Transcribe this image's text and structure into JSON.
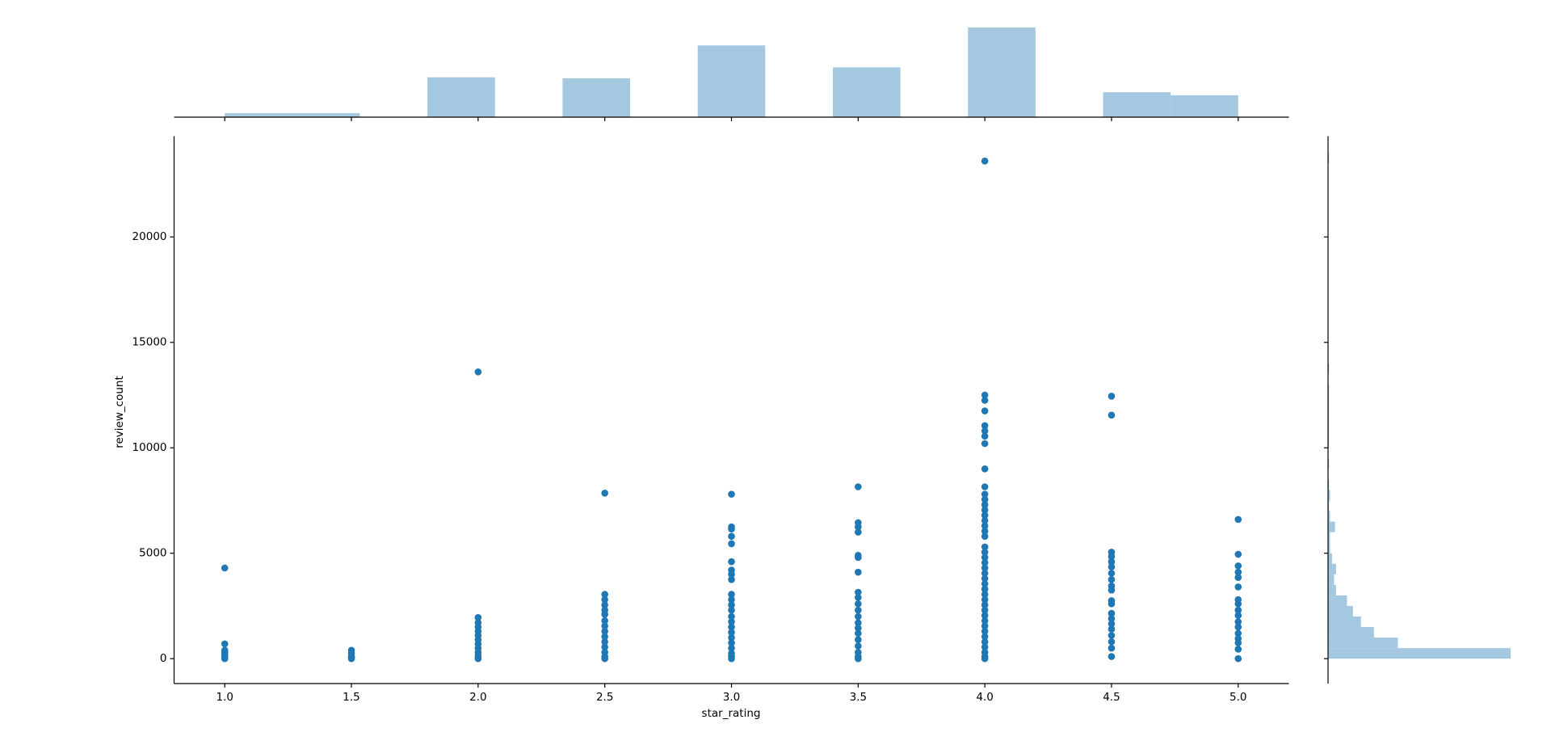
{
  "chart_data": [
    {
      "type": "scatter",
      "xlabel": "star_rating",
      "ylabel": "review_count",
      "color": "#1f77b4",
      "xlim": [
        0.8,
        5.2
      ],
      "ylim": [
        -1180,
        24780
      ],
      "xticks": [
        {
          "value": 1,
          "label": "1.0"
        },
        1.5,
        {
          "value": 2,
          "label": "2.0"
        },
        2.5,
        {
          "value": 3,
          "label": "3.0"
        },
        3.5,
        {
          "value": 4,
          "label": "4.0"
        },
        4.5,
        {
          "value": 5,
          "label": "5.0"
        }
      ],
      "yticks": [
        0,
        5000,
        10000,
        15000,
        20000
      ],
      "x": [
        1,
        1,
        1,
        1,
        1,
        1,
        1,
        1.5,
        1.5,
        1.5,
        1.5,
        1.5,
        2,
        2,
        2,
        2,
        2,
        2,
        2,
        2,
        2,
        2,
        2,
        2,
        2,
        2.5,
        2.5,
        2.5,
        2.5,
        2.5,
        2.5,
        2.5,
        2.5,
        2.5,
        2.5,
        2.5,
        2.5,
        2.5,
        2.5,
        2.5,
        3,
        3,
        3,
        3,
        3,
        3,
        3,
        3,
        3,
        3,
        3,
        3,
        3,
        3,
        3,
        3,
        3,
        3,
        3,
        3,
        3,
        3,
        3,
        3.5,
        3.5,
        3.5,
        3.5,
        3.5,
        3.5,
        3.5,
        3.5,
        3.5,
        3.5,
        3.5,
        3.5,
        3.5,
        3.5,
        3.5,
        3.5,
        3.5,
        3.5,
        3.5,
        3.5,
        4,
        4,
        4,
        4,
        4,
        4,
        4,
        4,
        4,
        4,
        4,
        4,
        4,
        4,
        4,
        4,
        4,
        4,
        4,
        4,
        4,
        4,
        4,
        4,
        4,
        4,
        4,
        4,
        4,
        4,
        4,
        4,
        4,
        4,
        4,
        4,
        4,
        4,
        4,
        4,
        4,
        4,
        4.5,
        4.5,
        4.5,
        4.5,
        4.5,
        4.5,
        4.5,
        4.5,
        4.5,
        4.5,
        4.5,
        4.5,
        4.5,
        4.5,
        4.5,
        4.5,
        4.5,
        4.5,
        4.5,
        4.5,
        5,
        5,
        5,
        5,
        5,
        5,
        5,
        5,
        5,
        5,
        5,
        5,
        5,
        5,
        5,
        5,
        5
      ],
      "y": [
        4300,
        700,
        400,
        300,
        200,
        100,
        0,
        400,
        250,
        100,
        50,
        0,
        13600,
        1950,
        1700,
        1500,
        1300,
        1100,
        900,
        700,
        500,
        300,
        150,
        50,
        0,
        7850,
        3050,
        2800,
        2550,
        2300,
        2100,
        1800,
        1550,
        1300,
        1050,
        800,
        550,
        300,
        100,
        0,
        7800,
        6250,
        6150,
        5800,
        5450,
        4600,
        4200,
        4000,
        3750,
        3050,
        2800,
        2550,
        2300,
        2000,
        1750,
        1500,
        1250,
        1000,
        750,
        500,
        250,
        100,
        0,
        8150,
        6450,
        6250,
        6000,
        4900,
        4800,
        4100,
        3150,
        2900,
        2600,
        2300,
        2000,
        1700,
        1450,
        1200,
        900,
        600,
        300,
        100,
        0,
        23600,
        12500,
        12250,
        11750,
        11050,
        10800,
        10550,
        10200,
        9000,
        8150,
        7800,
        7550,
        7300,
        7050,
        6800,
        6550,
        6300,
        6050,
        5800,
        5300,
        5050,
        4800,
        4550,
        4300,
        4050,
        3800,
        3550,
        3300,
        3050,
        2800,
        2550,
        2300,
        2050,
        1800,
        1550,
        1300,
        1050,
        800,
        550,
        300,
        100,
        0,
        12450,
        11550,
        5050,
        4850,
        4600,
        4350,
        4050,
        3750,
        3450,
        3250,
        2750,
        2600,
        2150,
        1900,
        1650,
        1400,
        1100,
        800,
        500,
        100,
        6600,
        4950,
        4400,
        4100,
        3850,
        3400,
        2800,
        2600,
        2300,
        2050,
        1750,
        1500,
        1200,
        950,
        750,
        450,
        0
      ]
    },
    {
      "type": "histogram",
      "color": "#a5c8e1",
      "ylim": [
        0,
        90
      ],
      "bins": [
        1,
        1.2667,
        1.5333,
        1.8,
        2.0667,
        2.3333,
        2.6,
        2.8667,
        3.1333,
        3.4,
        3.6667,
        3.9333,
        4.2,
        4.4667,
        4.7333,
        5
      ],
      "counts": [
        4,
        4,
        0,
        40,
        0,
        39,
        0,
        72,
        0,
        50,
        0,
        90,
        0,
        25,
        22
      ]
    },
    {
      "type": "histogram",
      "orientation": "horizontal",
      "color": "#a5c8e1",
      "xlim": [
        0,
        183
      ],
      "bins": [
        0,
        500,
        1000,
        1500,
        2000,
        2500,
        3000,
        3500,
        4000,
        4500,
        5000,
        5500,
        6000,
        6500,
        7000,
        7500,
        8000,
        8500,
        9000,
        9500,
        10000,
        10500,
        11000,
        11500,
        12000,
        12500,
        13000,
        13500,
        14000,
        14500,
        15000,
        15500,
        16000,
        16500,
        17000,
        17500,
        18000,
        18500,
        19000,
        19500,
        20000,
        20500,
        21000,
        21500,
        22000,
        22500,
        23000,
        23500,
        24000
      ],
      "counts": [
        183,
        70,
        46,
        33,
        25,
        19,
        8,
        6,
        8,
        4,
        2,
        2,
        7,
        2,
        1,
        2,
        1,
        0,
        1,
        0,
        1,
        1,
        1,
        1,
        1,
        1,
        0,
        1,
        0,
        0,
        0,
        0,
        0,
        0,
        0,
        0,
        0,
        0,
        0,
        0,
        0,
        0,
        0,
        0,
        0,
        0,
        0,
        1
      ]
    }
  ]
}
